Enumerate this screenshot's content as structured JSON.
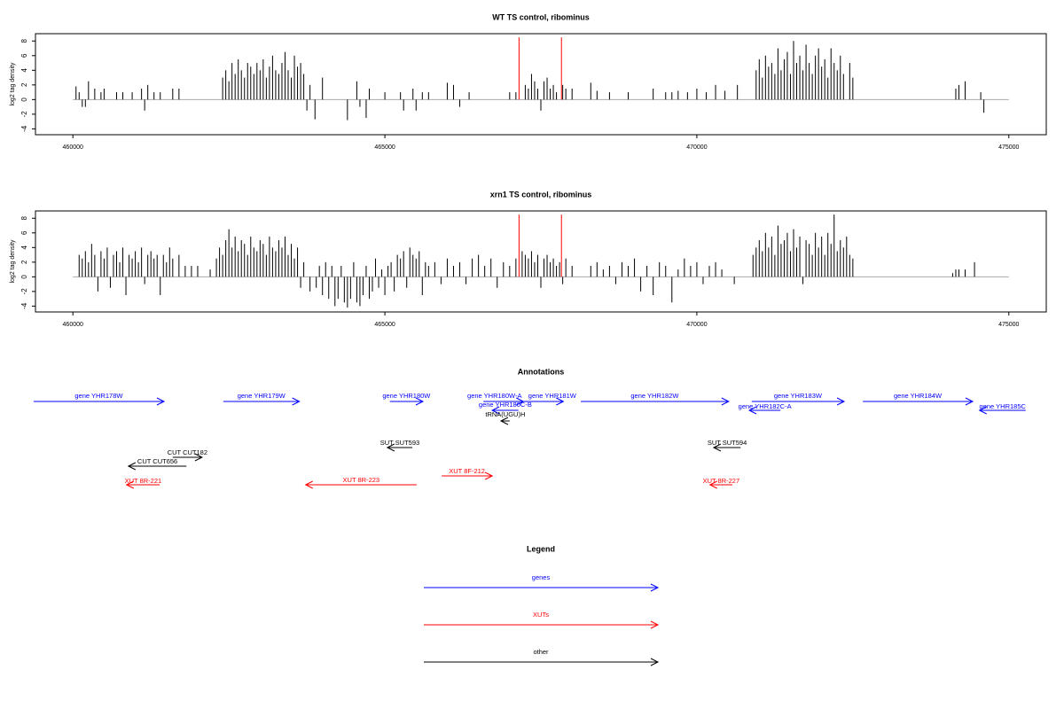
{
  "chart_data": [
    {
      "type": "bar",
      "title": "WT TS control, ribominus",
      "y_label": "log2 tag density",
      "color": "#000000",
      "xlim": [
        459400,
        475600
      ],
      "xticks": [
        460000,
        465000,
        470000,
        475000
      ],
      "ylim": [
        -4.8,
        9
      ],
      "yticks": [
        -4,
        -2,
        0,
        2,
        4,
        6,
        8
      ],
      "x": [
        460050,
        460100,
        460150,
        460200,
        460250,
        460350,
        460450,
        460500,
        460700,
        460800,
        460950,
        461100,
        461150,
        461200,
        461300,
        461400,
        461600,
        461700,
        462400,
        462450,
        462500,
        462550,
        462600,
        462650,
        462700,
        462750,
        462800,
        462850,
        462900,
        462950,
        463000,
        463050,
        463100,
        463150,
        463200,
        463250,
        463300,
        463350,
        463400,
        463450,
        463500,
        463550,
        463600,
        463650,
        463700,
        463750,
        463800,
        463880,
        464000,
        464400,
        464550,
        464600,
        464700,
        464750,
        465000,
        465250,
        465300,
        465450,
        465500,
        465600,
        465700,
        466000,
        466100,
        466200,
        466350,
        467000,
        467100,
        467250,
        467300,
        467350,
        467400,
        467450,
        467500,
        467550,
        467600,
        467650,
        467700,
        467750,
        467850,
        467900,
        468000,
        468300,
        468400,
        468600,
        468900,
        469300,
        469500,
        469600,
        469700,
        469850,
        470000,
        470150,
        470300,
        470450,
        470650,
        470950,
        471000,
        471050,
        471100,
        471150,
        471200,
        471250,
        471300,
        471350,
        471400,
        471450,
        471500,
        471550,
        471600,
        471650,
        471700,
        471750,
        471800,
        471850,
        471900,
        471950,
        472000,
        472050,
        472100,
        472150,
        472200,
        472250,
        472300,
        472350,
        472450,
        472500,
        474150,
        474200,
        474300,
        474550,
        474600
      ],
      "values": [
        1.8,
        1,
        -1,
        -1,
        2.5,
        1.5,
        1,
        1.5,
        1,
        1,
        1,
        1.5,
        -1.5,
        2,
        1,
        1,
        1.5,
        1.5,
        3,
        4,
        2.5,
        5,
        3.5,
        5.5,
        4,
        3,
        5,
        4.5,
        3.5,
        5,
        4,
        5.5,
        3,
        4.5,
        6,
        4,
        3.5,
        5,
        6.5,
        4,
        3,
        6,
        4.5,
        5,
        3.5,
        -1.5,
        2,
        -2.7,
        3,
        -2.8,
        2.5,
        -1,
        -2.5,
        1.5,
        1,
        1,
        -1.5,
        1.5,
        -1.5,
        1,
        1,
        2.3,
        2,
        -1,
        1,
        1,
        1,
        2,
        1.5,
        3.5,
        2.5,
        1.5,
        -1.5,
        2.5,
        3,
        1.5,
        2,
        1,
        2,
        1.5,
        1.5,
        2.3,
        1.2,
        1,
        1,
        1.5,
        1,
        1,
        1.2,
        1,
        1.5,
        1,
        2,
        1.2,
        2,
        4,
        5.5,
        3,
        6,
        4.5,
        5,
        3.5,
        7,
        4,
        5.5,
        6.5,
        3.5,
        8,
        5,
        6,
        4,
        7.5,
        5,
        3.5,
        6,
        7,
        4.5,
        5.5,
        3,
        7,
        5,
        4,
        6,
        3.5,
        5,
        3,
        1.5,
        2,
        2.5,
        1,
        -1.8
      ],
      "marker_color": "#ff0000",
      "marker_x": [
        467150,
        467830
      ],
      "marker_values": [
        8.5,
        8.5
      ]
    },
    {
      "type": "bar",
      "title": "xrn1 TS control, ribominus",
      "y_label": "log2 tag density",
      "color": "#000000",
      "xlim": [
        459400,
        475600
      ],
      "xticks": [
        460000,
        465000,
        470000,
        475000
      ],
      "ylim": [
        -4.8,
        9
      ],
      "yticks": [
        -4,
        -2,
        0,
        2,
        4,
        6,
        8
      ],
      "x": [
        460100,
        460150,
        460200,
        460250,
        460300,
        460350,
        460400,
        460450,
        460500,
        460550,
        460600,
        460650,
        460700,
        460750,
        460800,
        460850,
        460900,
        460950,
        461000,
        461050,
        461100,
        461150,
        461200,
        461250,
        461300,
        461350,
        461400,
        461450,
        461500,
        461550,
        461600,
        461700,
        461800,
        461900,
        462000,
        462200,
        462300,
        462350,
        462400,
        462450,
        462500,
        462550,
        462600,
        462650,
        462700,
        462750,
        462800,
        462850,
        462900,
        462950,
        463000,
        463050,
        463100,
        463150,
        463200,
        463250,
        463300,
        463350,
        463400,
        463450,
        463500,
        463550,
        463600,
        463650,
        463700,
        463800,
        463900,
        463950,
        464000,
        464050,
        464100,
        464150,
        464200,
        464250,
        464300,
        464350,
        464400,
        464450,
        464500,
        464550,
        464600,
        464650,
        464700,
        464750,
        464800,
        464850,
        464900,
        464950,
        465000,
        465050,
        465100,
        465150,
        465200,
        465250,
        465300,
        465350,
        465400,
        465450,
        465500,
        465550,
        465600,
        465650,
        465700,
        465800,
        465900,
        466000,
        466100,
        466200,
        466300,
        466400,
        466500,
        466600,
        466700,
        466800,
        466900,
        467000,
        467100,
        467200,
        467250,
        467300,
        467350,
        467400,
        467450,
        467500,
        467550,
        467600,
        467650,
        467700,
        467750,
        467800,
        467850,
        467900,
        468000,
        468300,
        468400,
        468500,
        468600,
        468700,
        468800,
        468900,
        469000,
        469100,
        469200,
        469300,
        469400,
        469500,
        469600,
        469700,
        469800,
        469900,
        470000,
        470100,
        470200,
        470300,
        470400,
        470600,
        470900,
        470950,
        471000,
        471050,
        471100,
        471150,
        471200,
        471250,
        471300,
        471350,
        471400,
        471450,
        471500,
        471550,
        471600,
        471650,
        471700,
        471750,
        471800,
        471850,
        471900,
        471950,
        472000,
        472050,
        472100,
        472150,
        472200,
        472250,
        472300,
        472350,
        472400,
        472450,
        472500,
        474100,
        474150,
        474200,
        474300,
        474450
      ],
      "values": [
        3,
        2.5,
        3.5,
        2,
        4.5,
        3,
        -2,
        3.5,
        2.5,
        4,
        -1.5,
        3,
        3.5,
        2,
        4,
        -2.5,
        3,
        2.5,
        3.5,
        2,
        4,
        -1,
        3,
        3.5,
        2.5,
        3,
        -2.5,
        3,
        2,
        4,
        2.5,
        3,
        1.5,
        1.5,
        1.5,
        1,
        2.5,
        4,
        3,
        5,
        6.5,
        4,
        5.5,
        3.5,
        5,
        4.5,
        3,
        5.5,
        4,
        3.5,
        5,
        4.5,
        3,
        5.5,
        4,
        3.5,
        5,
        4,
        5.5,
        3,
        4.5,
        2.5,
        4,
        -1.5,
        2,
        -2,
        -1.5,
        1.5,
        -2.5,
        2,
        -3,
        1.5,
        -4,
        -3,
        1.5,
        -3.5,
        -4.2,
        -3,
        2,
        -3.5,
        -4,
        -2.5,
        1.5,
        -3,
        -2,
        2.5,
        -1.5,
        1,
        -2.5,
        1.5,
        2,
        -2,
        3,
        2.5,
        3.5,
        -1.5,
        4,
        3,
        2.5,
        3.5,
        -2.5,
        2,
        1.5,
        2,
        -1,
        2.5,
        1.5,
        2,
        -1,
        2.5,
        3,
        1.5,
        2.5,
        -1.5,
        2,
        1.5,
        2.5,
        3.5,
        3,
        2.5,
        3.5,
        2,
        3,
        -1.5,
        2.5,
        3,
        2,
        2.5,
        1.5,
        2,
        -1,
        2.5,
        1.5,
        1.5,
        2,
        1,
        1.5,
        -1,
        2,
        1.5,
        2.5,
        -2,
        1.5,
        -2.5,
        2,
        1.5,
        -3.5,
        1,
        2.5,
        1.5,
        2,
        -1,
        1.5,
        2,
        1,
        -1,
        3,
        4,
        5,
        3.5,
        6,
        4,
        5.5,
        3,
        7,
        4.5,
        5,
        6,
        3.5,
        6.5,
        4,
        5.5,
        -1,
        5,
        4.5,
        3,
        6,
        4,
        5.5,
        3,
        6,
        4.5,
        8.5,
        3.5,
        5,
        4,
        5.5,
        3,
        2.5,
        0.5,
        1,
        1,
        1,
        2
      ],
      "marker_color": "#ff0000",
      "marker_x": [
        467150,
        467830
      ],
      "marker_values": [
        8.5,
        8.5
      ]
    }
  ],
  "annotations": {
    "title": "Annotations",
    "features": [
      {
        "label": "gene YHR178W",
        "start": 459370,
        "end": 461460,
        "direction": "right",
        "color": "#0000ff"
      },
      {
        "label": "gene YHR179W",
        "start": 462410,
        "end": 463630,
        "direction": "right",
        "color": "#0000ff"
      },
      {
        "label": "gene YHR180W",
        "start": 465080,
        "end": 465610,
        "direction": "right",
        "color": "#0000ff"
      },
      {
        "label": "gene YHR180W-A",
        "start": 466580,
        "end": 467220,
        "direction": "right",
        "color": "#0000ff"
      },
      {
        "label": "gene YHR181W",
        "start": 467220,
        "end": 467860,
        "direction": "right",
        "color": "#0000ff"
      },
      {
        "label": "gene YHR180C-B",
        "start": 466720,
        "end": 467140,
        "direction": "left",
        "color": "#0000ff"
      },
      {
        "label": "tRNA(UGU)H",
        "start": 466860,
        "end": 467000,
        "direction": "left",
        "color": "#000000"
      },
      {
        "label": "gene YHR182W",
        "start": 468140,
        "end": 470510,
        "direction": "right",
        "color": "#0000ff"
      },
      {
        "label": "gene YHR182C-A",
        "start": 470840,
        "end": 471340,
        "direction": "left",
        "color": "#0000ff"
      },
      {
        "label": "gene YHR183W",
        "start": 470880,
        "end": 472360,
        "direction": "right",
        "color": "#0000ff"
      },
      {
        "label": "gene YHR184W",
        "start": 472660,
        "end": 474420,
        "direction": "right",
        "color": "#0000ff"
      },
      {
        "label": "gene YHR185C",
        "start": 474530,
        "end": 475270,
        "direction": "left",
        "color": "#0000ff"
      },
      {
        "label": "SUT SUT593",
        "start": 465040,
        "end": 465440,
        "direction": "left",
        "color": "#000000"
      },
      {
        "label": "CUT CUT182",
        "start": 461600,
        "end": 462070,
        "direction": "right",
        "color": "#000000"
      },
      {
        "label": "CUT CUT656",
        "start": 460890,
        "end": 461820,
        "direction": "left",
        "color": "#000000"
      },
      {
        "label": "SUT SUT594",
        "start": 470270,
        "end": 470700,
        "direction": "left",
        "color": "#000000"
      },
      {
        "label": "XUT 8R-221",
        "start": 460860,
        "end": 461390,
        "direction": "left",
        "color": "#ff0000"
      },
      {
        "label": "XUT 8R-223",
        "start": 463730,
        "end": 465510,
        "direction": "left",
        "color": "#ff0000"
      },
      {
        "label": "XUT 8F-212",
        "start": 465910,
        "end": 466720,
        "direction": "right",
        "color": "#ff0000"
      },
      {
        "label": "XUT 8R-227",
        "start": 470210,
        "end": 470570,
        "direction": "left",
        "color": "#ff0000"
      }
    ]
  },
  "legend": {
    "title": "Legend",
    "items": [
      {
        "name": "genes",
        "color": "#0000ff"
      },
      {
        "name": "XUTs",
        "color": "#ff0000"
      },
      {
        "name": "other",
        "color": "#000000"
      }
    ]
  }
}
